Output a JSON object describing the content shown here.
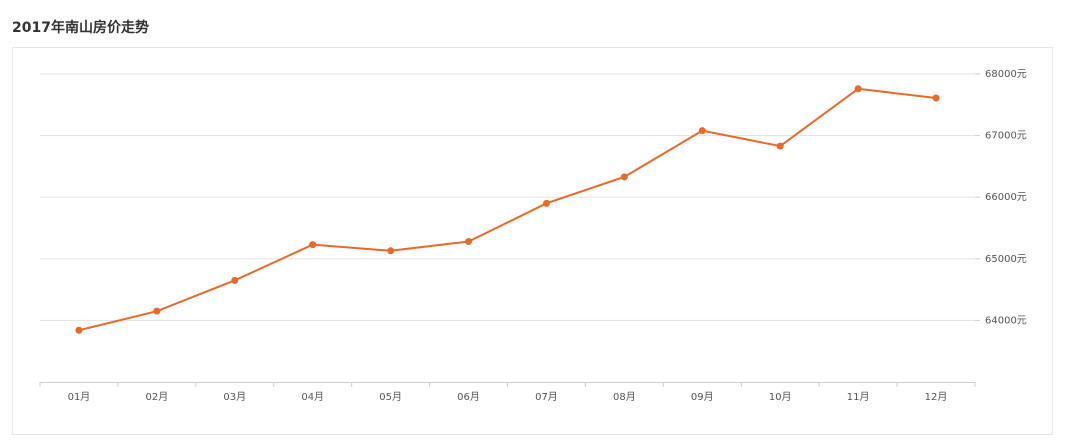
{
  "chart_data": {
    "type": "line",
    "title": "2017年南山房价走势",
    "categories": [
      "01月",
      "02月",
      "03月",
      "04月",
      "05月",
      "06月",
      "07月",
      "08月",
      "09月",
      "10月",
      "11月",
      "12月"
    ],
    "series": [
      {
        "color": "#e8692a",
        "values": [
          63840,
          64150,
          64650,
          65230,
          65130,
          65280,
          65900,
          66330,
          67080,
          66830,
          67760,
          67610
        ]
      }
    ],
    "ylim": [
      63000,
      68000
    ],
    "yticks": [
      {
        "value": 64000,
        "label": "64000元"
      },
      {
        "value": 65000,
        "label": "65000元"
      },
      {
        "value": 66000,
        "label": "66000元"
      },
      {
        "value": 67000,
        "label": "67000元"
      },
      {
        "value": 68000,
        "label": "68000元"
      }
    ],
    "grid": true
  }
}
